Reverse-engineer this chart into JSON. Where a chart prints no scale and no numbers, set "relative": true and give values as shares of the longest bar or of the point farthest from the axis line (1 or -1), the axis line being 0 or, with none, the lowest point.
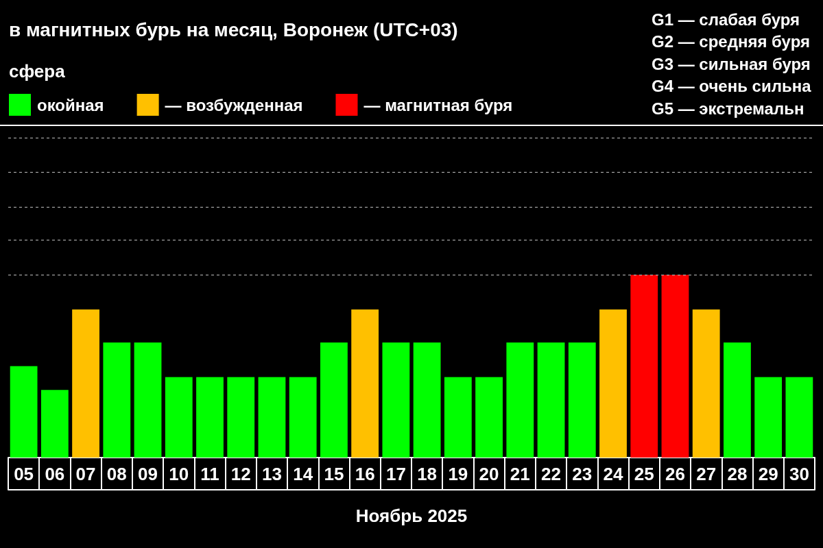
{
  "chart_data": {
    "type": "bar",
    "title": "в магнитных бурь на месяц, Воронеж (UTC+03)",
    "legend_title": "сфера",
    "xlabel": "Ноябрь 2025",
    "annotations": [
      "G1 — слабая буря",
      "G2 — средняя буря",
      "G3 — сильная буря",
      "G4 — очень сильна",
      "G5 — экстремальн"
    ],
    "categories": [
      "05",
      "06",
      "07",
      "08",
      "09",
      "10",
      "11",
      "12",
      "13",
      "14",
      "15",
      "16",
      "17",
      "18",
      "19",
      "20",
      "21",
      "22",
      "23",
      "24",
      "25",
      "26",
      "27",
      "28",
      "29",
      "30"
    ],
    "relative": true,
    "series": [
      {
        "name": "окойная",
        "color": "#00ff00",
        "values": [
          0.5,
          0.37,
          null,
          0.63,
          0.63,
          0.44,
          0.44,
          0.44,
          0.44,
          0.44,
          0.63,
          null,
          0.63,
          0.63,
          0.44,
          0.44,
          0.63,
          0.63,
          0.63,
          null,
          null,
          null,
          null,
          0.63,
          0.44,
          0.44
        ]
      },
      {
        "name": "— возбужденная",
        "color": "#ffc000",
        "values": [
          null,
          null,
          0.81,
          null,
          null,
          null,
          null,
          null,
          null,
          null,
          null,
          0.81,
          null,
          null,
          null,
          null,
          null,
          null,
          null,
          0.81,
          null,
          null,
          0.81,
          null,
          null,
          null
        ]
      },
      {
        "name": "— магнитная буря",
        "color": "#ff0000",
        "values": [
          null,
          null,
          null,
          null,
          null,
          null,
          null,
          null,
          null,
          null,
          null,
          null,
          null,
          null,
          null,
          null,
          null,
          null,
          null,
          null,
          1,
          1,
          null,
          null,
          null,
          null
        ]
      }
    ],
    "ref_lines": [
      {
        "axis": "y",
        "value": 1,
        "color": "#bfbfbf",
        "line_style": "dashed"
      },
      {
        "axis": "y",
        "value": 1.19,
        "color": "#bfbfbf",
        "line_style": "dashed"
      },
      {
        "axis": "y",
        "value": 1.37,
        "color": "#bfbfbf",
        "line_style": "dashed"
      },
      {
        "axis": "y",
        "value": 1.56,
        "color": "#bfbfbf",
        "line_style": "dashed"
      },
      {
        "axis": "y",
        "value": 1.75,
        "color": "#bfbfbf",
        "line_style": "dashed"
      }
    ],
    "legend": "top left",
    "tick_labels": "x"
  }
}
